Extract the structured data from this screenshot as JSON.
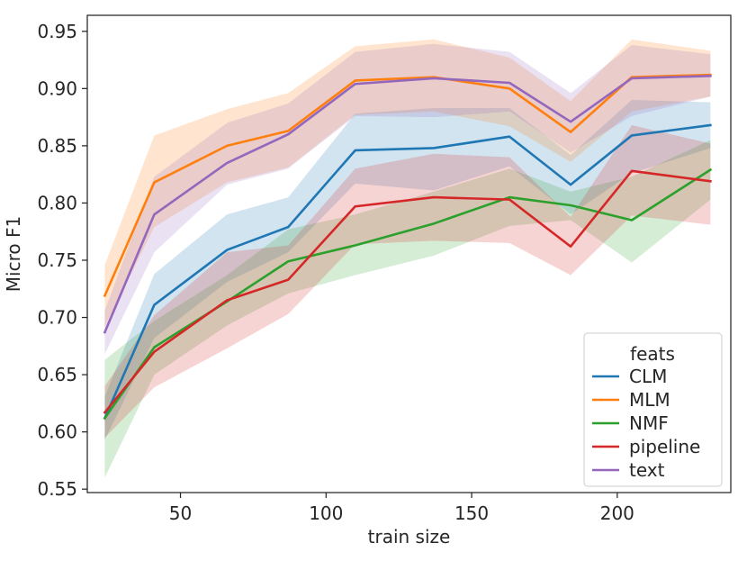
{
  "chart_data": {
    "type": "line",
    "title": "",
    "xlabel": "train size",
    "ylabel": "Micro F1",
    "xlim": [
      18,
      239
    ],
    "ylim": [
      0.547,
      0.964
    ],
    "xticks": [
      50,
      100,
      150,
      200
    ],
    "xtick_labels": [
      "50",
      "100",
      "150",
      "200"
    ],
    "yticks": [
      0.55,
      0.6,
      0.65,
      0.7,
      0.75,
      0.8,
      0.85,
      0.9,
      0.95
    ],
    "ytick_labels": [
      "0.55",
      "0.60",
      "0.65",
      "0.70",
      "0.75",
      "0.80",
      "0.85",
      "0.90",
      "0.95"
    ],
    "grid": false,
    "legend": {
      "title": "feats",
      "placement": "bottom-right"
    },
    "x": [
      24,
      41,
      66,
      87,
      110,
      137,
      163,
      184,
      205,
      232
    ],
    "series": [
      {
        "name": "CLM",
        "color": "#1f77b4",
        "values": [
          0.612,
          0.711,
          0.759,
          0.779,
          0.846,
          0.848,
          0.858,
          0.816,
          0.859,
          0.868
        ],
        "lower": [
          0.593,
          0.682,
          0.731,
          0.757,
          0.817,
          0.811,
          0.832,
          0.79,
          0.826,
          0.848
        ],
        "upper": [
          0.631,
          0.738,
          0.79,
          0.805,
          0.878,
          0.883,
          0.883,
          0.842,
          0.89,
          0.888
        ]
      },
      {
        "name": "MLM",
        "color": "#ff7f0e",
        "values": [
          0.719,
          0.818,
          0.85,
          0.863,
          0.907,
          0.91,
          0.9,
          0.862,
          0.91,
          0.912
        ],
        "lower": [
          0.692,
          0.779,
          0.818,
          0.831,
          0.877,
          0.88,
          0.867,
          0.836,
          0.88,
          0.893
        ],
        "upper": [
          0.746,
          0.859,
          0.882,
          0.896,
          0.937,
          0.943,
          0.927,
          0.889,
          0.943,
          0.933
        ]
      },
      {
        "name": "NMF",
        "color": "#2ca02c",
        "values": [
          0.612,
          0.674,
          0.714,
          0.749,
          0.763,
          0.782,
          0.805,
          0.798,
          0.785,
          0.829
        ],
        "lower": [
          0.56,
          0.65,
          0.693,
          0.721,
          0.737,
          0.754,
          0.78,
          0.785,
          0.748,
          0.803
        ],
        "upper": [
          0.663,
          0.697,
          0.737,
          0.777,
          0.79,
          0.81,
          0.83,
          0.81,
          0.823,
          0.855
        ]
      },
      {
        "name": "pipeline",
        "color": "#d62728",
        "values": [
          0.617,
          0.67,
          0.715,
          0.733,
          0.797,
          0.805,
          0.803,
          0.762,
          0.828,
          0.819
        ],
        "lower": [
          0.595,
          0.639,
          0.673,
          0.703,
          0.764,
          0.767,
          0.765,
          0.737,
          0.789,
          0.781
        ],
        "upper": [
          0.64,
          0.702,
          0.757,
          0.763,
          0.83,
          0.843,
          0.84,
          0.788,
          0.868,
          0.852
        ]
      },
      {
        "name": "text",
        "color": "#9467bd",
        "values": [
          0.687,
          0.79,
          0.835,
          0.86,
          0.904,
          0.909,
          0.905,
          0.871,
          0.909,
          0.911
        ],
        "lower": [
          0.668,
          0.757,
          0.816,
          0.83,
          0.876,
          0.875,
          0.88,
          0.844,
          0.876,
          0.893
        ],
        "upper": [
          0.706,
          0.823,
          0.87,
          0.887,
          0.932,
          0.939,
          0.932,
          0.896,
          0.938,
          0.93
        ]
      }
    ]
  }
}
